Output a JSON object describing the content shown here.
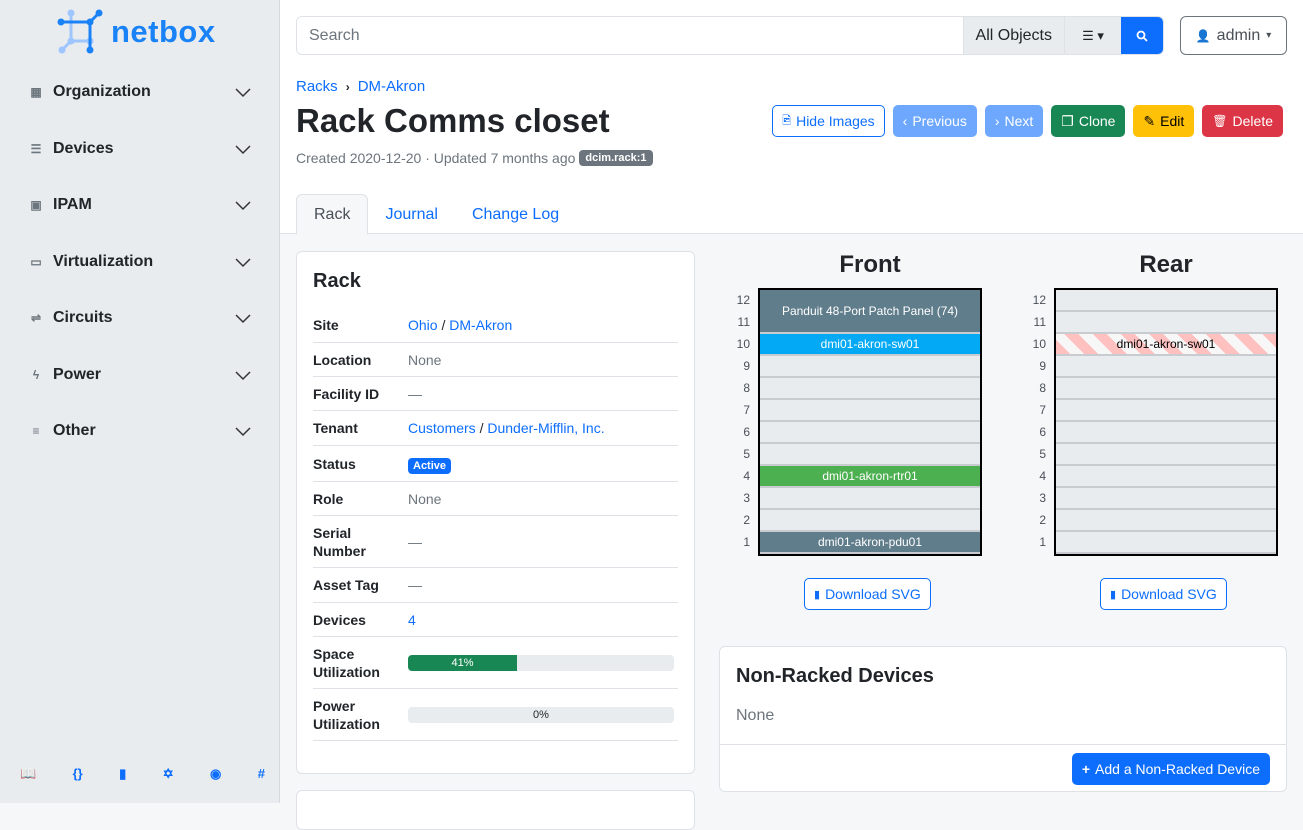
{
  "app": {
    "logo_text": "netbox"
  },
  "sidebar": {
    "items": [
      {
        "label": "Organization",
        "icon": "building-icon",
        "glyph": "▦"
      },
      {
        "label": "Devices",
        "icon": "server-icon",
        "glyph": "☰"
      },
      {
        "label": "IPAM",
        "icon": "ip-icon",
        "glyph": "▣"
      },
      {
        "label": "Virtualization",
        "icon": "monitor-icon",
        "glyph": "▭"
      },
      {
        "label": "Circuits",
        "icon": "circuit-icon",
        "glyph": "⇌"
      },
      {
        "label": "Power",
        "icon": "lightning-icon",
        "glyph": "ϟ"
      },
      {
        "label": "Other",
        "icon": "notes-icon",
        "glyph": "≡"
      }
    ],
    "footer_icons": [
      "book-icon",
      "api-icon",
      "bookmark-icon",
      "graphql-icon",
      "github-icon",
      "slack-icon"
    ]
  },
  "search": {
    "placeholder": "Search",
    "scope": "All Objects"
  },
  "user": {
    "name": "admin"
  },
  "breadcrumb": [
    "Racks",
    "DM-Akron"
  ],
  "page": {
    "title": "Rack Comms closet",
    "meta": "Created 2020-12-20 · Updated 7 months ago",
    "tag": "dcim.rack:1"
  },
  "actions": {
    "hide_images": "Hide Images",
    "previous": "Previous",
    "next": "Next",
    "clone": "Clone",
    "edit": "Edit",
    "delete": "Delete"
  },
  "tabs": [
    "Rack",
    "Journal",
    "Change Log"
  ],
  "rack_card": {
    "title": "Rack",
    "rows": {
      "site_label": "Site",
      "site_region": "Ohio",
      "site_sep": " / ",
      "site": "DM-Akron",
      "location_label": "Location",
      "location": "None",
      "facility_label": "Facility ID",
      "facility": "—",
      "tenant_label": "Tenant",
      "tenant_group": "Customers",
      "tenant_sep": " / ",
      "tenant": "Dunder-Mifflin, Inc.",
      "status_label": "Status",
      "status": "Active",
      "role_label": "Role",
      "role": "None",
      "serial_label": "Serial Number",
      "serial": "—",
      "asset_label": "Asset Tag",
      "asset": "—",
      "devices_label": "Devices",
      "devices": "4",
      "space_label": "Space Utilization",
      "space": "41%",
      "space_value": 41,
      "power_label": "Power Utilization",
      "power": "0%",
      "power_value": 0
    }
  },
  "elevations": {
    "front_title": "Front",
    "rear_title": "Rear",
    "units": [
      "12",
      "11",
      "10",
      "9",
      "8",
      "7",
      "6",
      "5",
      "4",
      "3",
      "2",
      "1"
    ],
    "front_devices": [
      {
        "name": "Panduit 48-Port Patch Panel (74)",
        "top_u": 12,
        "height_u": 2,
        "color": "#607d8b"
      },
      {
        "name": "dmi01-akron-sw01",
        "top_u": 10,
        "height_u": 1,
        "color": "#03a9f4"
      },
      {
        "name": "dmi01-akron-rtr01",
        "top_u": 4,
        "height_u": 1,
        "color": "#4caf50"
      },
      {
        "name": "dmi01-akron-pdu01",
        "top_u": 1,
        "height_u": 1,
        "color": "#607d8b"
      }
    ],
    "rear_devices": [
      {
        "name": "dmi01-akron-sw01",
        "top_u": 10,
        "height_u": 1,
        "color": "#ffc0c0"
      }
    ],
    "download": "Download SVG"
  },
  "non_racked": {
    "title": "Non-Racked Devices",
    "value": "None",
    "add": "Add a Non-Racked Device"
  }
}
